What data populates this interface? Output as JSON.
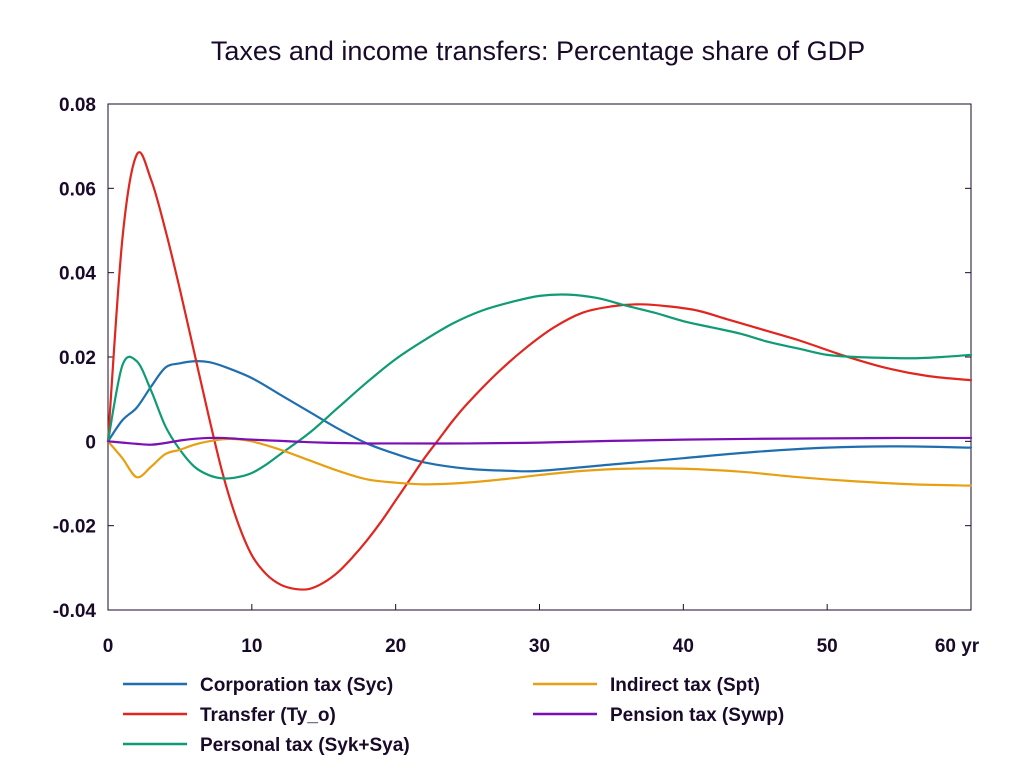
{
  "chart_data": {
    "type": "line",
    "title": "Taxes and income transfers: Percentage share of GDP",
    "xlabel": "",
    "ylabel": "",
    "x_unit": "yr",
    "xlim": [
      0,
      60
    ],
    "ylim": [
      -0.04,
      0.08
    ],
    "x_ticks": [
      0,
      10,
      20,
      30,
      40,
      50,
      60
    ],
    "x_tick_labels": [
      "0",
      "10",
      "20",
      "30",
      "40",
      "50",
      "60 yr"
    ],
    "y_ticks": [
      -0.04,
      -0.02,
      0,
      0.02,
      0.04,
      0.06,
      0.08
    ],
    "y_tick_labels": [
      "-0.04",
      "-0.02",
      "0",
      "0.02",
      "0.04",
      "0.06",
      "0.08"
    ],
    "grid": false,
    "legend_position": "bottom",
    "series": [
      {
        "name": "Corporation tax (Syc)",
        "color": "#1f6fb0",
        "x": [
          0,
          1,
          2,
          3,
          4,
          5,
          6,
          7,
          8,
          10,
          12,
          14,
          16,
          18,
          20,
          22,
          25,
          28,
          30,
          35,
          40,
          45,
          50,
          55,
          60
        ],
        "y": [
          0,
          0.005,
          0.008,
          0.013,
          0.0175,
          0.0185,
          0.019,
          0.0188,
          0.0178,
          0.015,
          0.011,
          0.007,
          0.003,
          -0.0005,
          -0.003,
          -0.005,
          -0.0065,
          -0.007,
          -0.007,
          -0.0055,
          -0.004,
          -0.0025,
          -0.0015,
          -0.0012,
          -0.0015
        ]
      },
      {
        "name": "Transfer (Ty_o)",
        "color": "#e0261f",
        "x": [
          0,
          1,
          2,
          3,
          4,
          5,
          6,
          7,
          8,
          9,
          10,
          11,
          12,
          13,
          14,
          15,
          16,
          17,
          18,
          19,
          20,
          21,
          22,
          23,
          24,
          25,
          27,
          29,
          31,
          33,
          35,
          37,
          39,
          41,
          43,
          45,
          48,
          51,
          54,
          57,
          60
        ],
        "y": [
          0,
          0.048,
          0.068,
          0.062,
          0.05,
          0.036,
          0.021,
          0.006,
          -0.008,
          -0.019,
          -0.027,
          -0.0315,
          -0.034,
          -0.035,
          -0.035,
          -0.0335,
          -0.031,
          -0.0275,
          -0.0235,
          -0.019,
          -0.014,
          -0.009,
          -0.004,
          0.0005,
          0.005,
          0.009,
          0.016,
          0.022,
          0.027,
          0.0305,
          0.032,
          0.0325,
          0.032,
          0.031,
          0.029,
          0.027,
          0.024,
          0.0205,
          0.0175,
          0.0155,
          0.0145
        ]
      },
      {
        "name": "Personal tax (Syk+Sya)",
        "color": "#0f9b74",
        "x": [
          0,
          1,
          2,
          3,
          4,
          5,
          6,
          7,
          8,
          9,
          10,
          11,
          12,
          14,
          16,
          18,
          20,
          22,
          24,
          26,
          28,
          30,
          32,
          34,
          36,
          38,
          40,
          42,
          44,
          46,
          48,
          50,
          52,
          54,
          56,
          58,
          60
        ],
        "y": [
          0,
          0.018,
          0.019,
          0.012,
          0.0035,
          -0.002,
          -0.006,
          -0.008,
          -0.0088,
          -0.0085,
          -0.0075,
          -0.0055,
          -0.003,
          0.002,
          0.008,
          0.014,
          0.0195,
          0.024,
          0.028,
          0.031,
          0.033,
          0.0345,
          0.0348,
          0.034,
          0.0322,
          0.0305,
          0.0285,
          0.027,
          0.0255,
          0.0235,
          0.022,
          0.0205,
          0.02,
          0.0198,
          0.0197,
          0.02,
          0.0205
        ]
      },
      {
        "name": "Indirect tax (Spt)",
        "color": "#e8a013",
        "x": [
          0,
          1,
          2,
          3,
          4,
          5,
          6,
          7,
          8,
          9,
          10,
          12,
          14,
          16,
          18,
          20,
          22,
          24,
          26,
          28,
          30,
          33,
          36,
          40,
          44,
          48,
          52,
          56,
          60
        ],
        "y": [
          0,
          -0.004,
          -0.0085,
          -0.006,
          -0.003,
          -0.002,
          -0.0008,
          0,
          0.0005,
          0.0005,
          0,
          -0.002,
          -0.0045,
          -0.007,
          -0.009,
          -0.0098,
          -0.0102,
          -0.01,
          -0.0095,
          -0.0088,
          -0.008,
          -0.007,
          -0.0065,
          -0.0065,
          -0.0072,
          -0.0085,
          -0.0095,
          -0.0102,
          -0.0105
        ]
      },
      {
        "name": "Pension tax (Sywp)",
        "color": "#7b0fb5",
        "x": [
          0,
          1,
          2,
          3,
          4,
          5,
          6,
          7,
          8,
          9,
          10,
          12,
          14,
          16,
          18,
          20,
          25,
          30,
          35,
          40,
          45,
          50,
          55,
          60
        ],
        "y": [
          0,
          -0.0003,
          -0.0006,
          -0.0008,
          -0.0004,
          0.0002,
          0.0006,
          0.0008,
          0.0008,
          0.0006,
          0.0004,
          0.0001,
          -0.0002,
          -0.0004,
          -0.0005,
          -0.0005,
          -0.0005,
          -0.0003,
          0.0001,
          0.0004,
          0.0006,
          0.0007,
          0.0008,
          0.0008
        ]
      }
    ]
  }
}
